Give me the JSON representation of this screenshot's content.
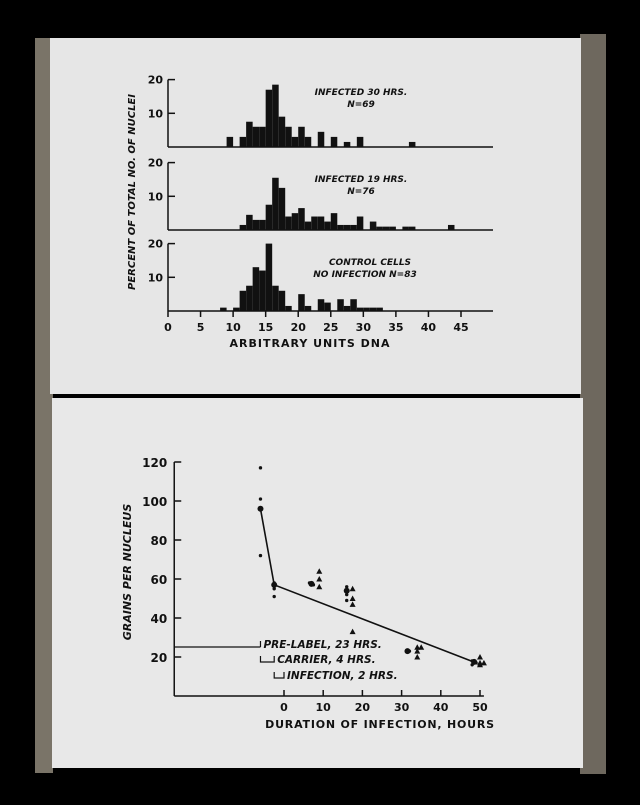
{
  "colors": {
    "background": "#000000",
    "panel": "#e6e6e6",
    "ink": "#111111"
  },
  "chart_data": [
    {
      "type": "bar",
      "subtype": "histogram-stack",
      "xlabel": "ARBITRARY UNITS DNA",
      "ylabel": "PERCENT OF TOTAL NO. OF NUCLEI",
      "xlim": [
        0,
        45
      ],
      "ylim": [
        0,
        20
      ],
      "xticks": [
        "0",
        "5",
        "10",
        "15",
        "20",
        "25",
        "30",
        "35",
        "40",
        "45"
      ],
      "yticks": [
        "10",
        "20"
      ],
      "bin_width": 1,
      "panels": [
        {
          "label_line1": "INFECTED 30 HRS.",
          "label_line2": "N=69",
          "bins": [
            [
              9,
              3
            ],
            [
              11,
              3
            ],
            [
              12,
              7.5
            ],
            [
              13,
              6
            ],
            [
              14,
              6
            ],
            [
              15,
              17
            ],
            [
              16,
              18.5
            ],
            [
              17,
              9
            ],
            [
              18,
              6
            ],
            [
              19,
              3
            ],
            [
              20,
              6
            ],
            [
              21,
              3
            ],
            [
              23,
              4.5
            ],
            [
              25,
              3
            ],
            [
              27,
              1.5
            ],
            [
              29,
              3
            ],
            [
              37,
              1.5
            ]
          ]
        },
        {
          "label_line1": "INFECTED 19 HRS.",
          "label_line2": "N=76",
          "bins": [
            [
              11,
              1.5
            ],
            [
              12,
              4.5
            ],
            [
              13,
              3
            ],
            [
              14,
              3
            ],
            [
              15,
              7.5
            ],
            [
              16,
              15.5
            ],
            [
              17,
              12.5
            ],
            [
              18,
              4
            ],
            [
              19,
              5
            ],
            [
              20,
              6.5
            ],
            [
              21,
              2.5
            ],
            [
              22,
              4
            ],
            [
              23,
              4
            ],
            [
              24,
              2.5
            ],
            [
              25,
              5
            ],
            [
              26,
              1.5
            ],
            [
              27,
              1.5
            ],
            [
              28,
              1.5
            ],
            [
              29,
              4
            ],
            [
              31,
              2.5
            ],
            [
              32,
              1
            ],
            [
              33,
              1
            ],
            [
              34,
              1
            ],
            [
              36,
              1
            ],
            [
              37,
              1
            ],
            [
              43,
              1.5
            ]
          ]
        },
        {
          "label_line1": "CONTROL CELLS",
          "label_line2": "NO INFECTION    N=83",
          "bins": [
            [
              8,
              1
            ],
            [
              10,
              1
            ],
            [
              11,
              6
            ],
            [
              12,
              7.5
            ],
            [
              13,
              13
            ],
            [
              14,
              12
            ],
            [
              15,
              20
            ],
            [
              16,
              7.5
            ],
            [
              17,
              6
            ],
            [
              18,
              1.5
            ],
            [
              20,
              5
            ],
            [
              21,
              1.5
            ],
            [
              23,
              3.5
            ],
            [
              24,
              2.5
            ],
            [
              26,
              3.5
            ],
            [
              27,
              1.5
            ],
            [
              28,
              3.5
            ],
            [
              29,
              1
            ],
            [
              30,
              1
            ],
            [
              31,
              1
            ],
            [
              32,
              1
            ]
          ]
        }
      ]
    },
    {
      "type": "scatter",
      "xlabel": "DURATION OF INFECTION, HOURS",
      "ylabel": "GRAINS PER NUCLEUS",
      "xlim": [
        -28,
        52
      ],
      "ylim": [
        0,
        120
      ],
      "xticks": [
        "0",
        "10",
        "20",
        "30",
        "40",
        "50"
      ],
      "yticks": [
        "20",
        "40",
        "60",
        "80",
        "100",
        "120"
      ],
      "dots": [
        [
          -6,
          117
        ],
        [
          -6,
          101
        ],
        [
          -6,
          72
        ],
        [
          -2.5,
          58
        ],
        [
          -2.5,
          55
        ],
        [
          -2.5,
          51
        ],
        [
          6.5,
          58
        ],
        [
          7.5,
          57
        ],
        [
          16,
          56
        ],
        [
          16,
          52
        ],
        [
          16,
          49
        ],
        [
          32,
          23
        ],
        [
          48,
          18
        ],
        [
          48,
          16
        ],
        [
          49,
          17
        ]
      ],
      "mean_dots": [
        [
          -6,
          96
        ],
        [
          -2.5,
          57
        ],
        [
          7,
          57.5
        ],
        [
          16,
          54
        ],
        [
          31.5,
          23
        ],
        [
          48.5,
          17.5
        ]
      ],
      "triangles": [
        [
          9,
          64
        ],
        [
          9,
          60
        ],
        [
          9,
          56
        ],
        [
          17.5,
          55
        ],
        [
          17.5,
          50
        ],
        [
          17.5,
          47
        ],
        [
          17.5,
          33
        ],
        [
          34,
          25
        ],
        [
          34,
          23
        ],
        [
          34,
          20
        ],
        [
          35,
          25
        ],
        [
          50,
          20
        ],
        [
          50,
          17
        ],
        [
          50,
          16
        ],
        [
          51,
          17
        ]
      ],
      "line": [
        [
          -6,
          96
        ],
        [
          -2.5,
          57
        ],
        [
          49,
          17
        ]
      ],
      "annotations": [
        {
          "text": "PRE-LABEL, 23 HRS.",
          "from": -28,
          "to": -6,
          "y": 25
        },
        {
          "text": "CARRIER, 4 HRS.",
          "from": -6,
          "to": -2.5,
          "y": 20
        },
        {
          "text": "INFECTION, 2 HRS.",
          "from": -2.5,
          "to": 0,
          "y": 16
        }
      ]
    }
  ]
}
